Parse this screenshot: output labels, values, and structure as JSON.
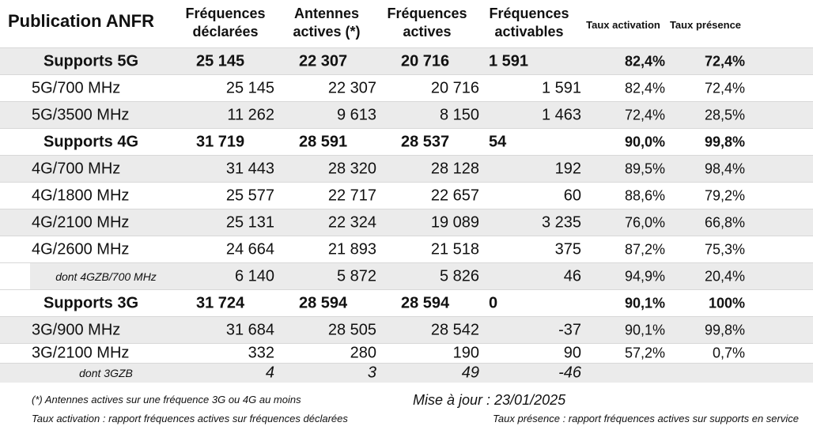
{
  "header": {
    "title": "Publication ANFR",
    "columns": [
      "Fréquences\ndéclarées",
      "Antennes\nactives (*)",
      "Fréquences\nactives",
      "Fréquences\nactivables",
      "Taux activation",
      "Taux présence"
    ]
  },
  "rows": [
    {
      "label": "Supports 5G",
      "bold": true,
      "values": [
        "25 145",
        "22 307",
        "20 716",
        "1 591",
        "82,4%",
        "72,4%"
      ]
    },
    {
      "label": "5G/700 MHz",
      "values": [
        "25 145",
        "22 307",
        "20 716",
        "1 591",
        "82,4%",
        "72,4%"
      ]
    },
    {
      "label": "5G/3500 MHz",
      "values": [
        "11 262",
        "9 613",
        "8 150",
        "1 463",
        "72,4%",
        "28,5%"
      ]
    },
    {
      "label": "Supports 4G",
      "bold": true,
      "values": [
        "31 719",
        "28 591",
        "28 537",
        "54",
        "90,0%",
        "99,8%"
      ]
    },
    {
      "label": "4G/700 MHz",
      "values": [
        "31 443",
        "28 320",
        "28 128",
        "192",
        "89,5%",
        "98,4%"
      ]
    },
    {
      "label": "4G/1800 MHz",
      "values": [
        "25 577",
        "22 717",
        "22 657",
        "60",
        "88,6%",
        "79,2%"
      ]
    },
    {
      "label": "4G/2100 MHz",
      "values": [
        "25 131",
        "22 324",
        "19 089",
        "3 235",
        "76,0%",
        "66,8%"
      ]
    },
    {
      "label": "4G/2600 MHz",
      "values": [
        "24 664",
        "21 893",
        "21 518",
        "375",
        "87,2%",
        "75,3%"
      ]
    },
    {
      "label": "dont 4GZB/700 MHz",
      "italic": true,
      "values": [
        "6 140",
        "5 872",
        "5 826",
        "46",
        "94,9%",
        "20,4%"
      ]
    },
    {
      "label": "Supports 3G",
      "bold": true,
      "values": [
        "31 724",
        "28 594",
        "28 594",
        "0",
        "90,1%",
        "100%"
      ]
    },
    {
      "label": "3G/900 MHz",
      "values": [
        "31 684",
        "28 505",
        "28 542",
        "-37",
        "90,1%",
        "99,8%"
      ]
    },
    {
      "label": "3G/2100 MHz",
      "values": [
        "332",
        "280",
        "190",
        "90",
        "57,2%",
        "0,7%"
      ]
    },
    {
      "label": "dont 3GZB",
      "italic": true,
      "values": [
        "4",
        "3",
        "49",
        "-46"
      ]
    }
  ],
  "footer": {
    "note": "(*) Antennes actives sur une fréquence 3G ou 4G au moins",
    "update": "Mise à jour : 23/01/2025",
    "activation": "Taux activation : rapport fréquences actives sur fréquences déclarées",
    "presence": "Taux présence : rapport fréquences actives sur supports en service"
  }
}
